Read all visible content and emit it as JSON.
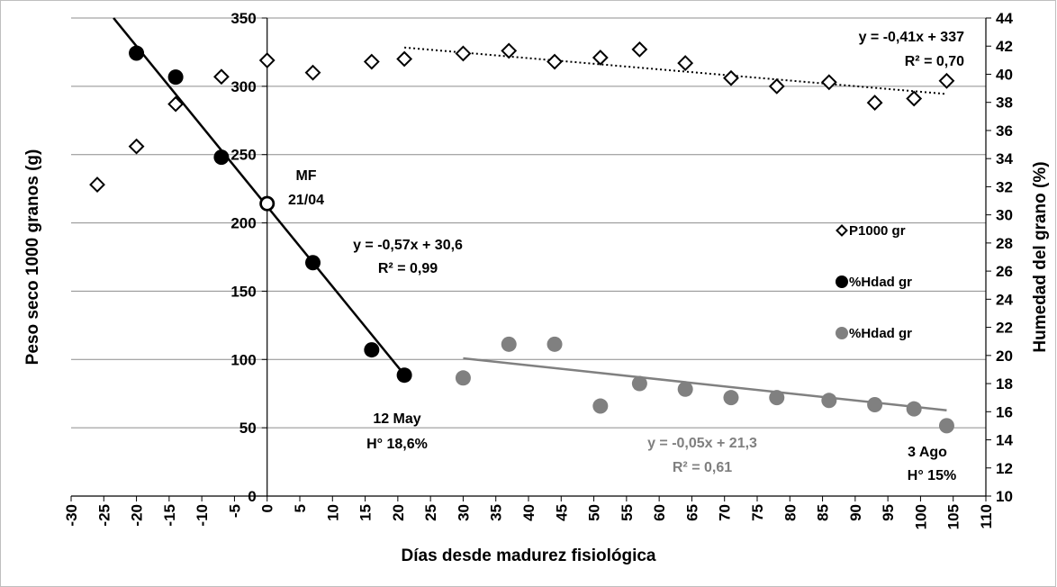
{
  "chart_data": {
    "type": "scatter",
    "xlabel": "Días desde madurez fisiológica",
    "ylabel": "Peso seco 1000 granos (g)",
    "y2label": "Humedad del grano (%)",
    "xlim": [
      -30,
      110
    ],
    "ylim": [
      0,
      350
    ],
    "y2lim": [
      10,
      44
    ],
    "x_ticks": [
      -30,
      -25,
      -20,
      -15,
      -10,
      -5,
      0,
      5,
      10,
      15,
      20,
      25,
      30,
      35,
      40,
      45,
      50,
      55,
      60,
      65,
      70,
      75,
      80,
      85,
      90,
      95,
      100,
      105,
      110
    ],
    "y_ticks": [
      0,
      50,
      100,
      150,
      200,
      250,
      300,
      350
    ],
    "y2_ticks": [
      10,
      12,
      14,
      16,
      18,
      20,
      22,
      24,
      26,
      28,
      30,
      32,
      34,
      36,
      38,
      40,
      42,
      44
    ],
    "grid": true,
    "legend_position": "right",
    "series": [
      {
        "name": "P1000 gr",
        "axis": "left",
        "marker": "diamond-open",
        "color": "#000000",
        "points": [
          [
            -26,
            228
          ],
          [
            -20,
            256
          ],
          [
            -14,
            287
          ],
          [
            -7,
            307
          ],
          [
            0,
            319
          ],
          [
            7,
            310
          ],
          [
            16,
            318
          ],
          [
            21,
            320
          ],
          [
            30,
            324
          ],
          [
            37,
            326
          ],
          [
            44,
            318
          ],
          [
            51,
            321
          ],
          [
            57,
            327
          ],
          [
            64,
            317
          ],
          [
            71,
            306
          ],
          [
            78,
            300
          ],
          [
            86,
            303
          ],
          [
            93,
            288
          ],
          [
            99,
            291
          ],
          [
            104,
            304
          ]
        ]
      },
      {
        "name": "%Hdad gr",
        "axis": "right",
        "marker": "circle-filled",
        "color": "#000000",
        "points": [
          [
            -20,
            41.5
          ],
          [
            -14,
            39.8
          ],
          [
            -7,
            34.1
          ],
          [
            0,
            30.8
          ],
          [
            7,
            26.6
          ],
          [
            16,
            20.4
          ],
          [
            21,
            18.6
          ]
        ]
      },
      {
        "name": "%Hdad gr",
        "axis": "right",
        "marker": "circle-filled",
        "color": "#808080",
        "points": [
          [
            30,
            18.4
          ],
          [
            37,
            20.8
          ],
          [
            44,
            20.8
          ],
          [
            51,
            16.4
          ],
          [
            57,
            18.0
          ],
          [
            64,
            17.6
          ],
          [
            71,
            17.0
          ],
          [
            78,
            17.0
          ],
          [
            86,
            16.8
          ],
          [
            93,
            16.5
          ],
          [
            99,
            16.2
          ],
          [
            104,
            15.0
          ]
        ]
      }
    ],
    "trendlines": [
      {
        "series": "P1000 gr",
        "axis": "left",
        "style": "dotted",
        "color": "#000000",
        "x_range": [
          21,
          104
        ],
        "equation": "y = -0,41x + 337",
        "r2": "R² = 0,70"
      },
      {
        "series": "%Hdad gr",
        "axis": "right",
        "style": "solid",
        "color": "#000000",
        "x_range": [
          -26,
          21
        ],
        "equation": "y = -0,57x + 30,6",
        "r2": "R² = 0,99"
      },
      {
        "series": "%Hdad gr",
        "axis": "right",
        "style": "solid",
        "color": "#808080",
        "x_range": [
          30,
          104
        ],
        "equation": "y = -0,05x + 21,3",
        "r2": "R² = 0,61"
      }
    ],
    "annotations": [
      {
        "id": "mf",
        "lines": [
          "MF",
          "21/04"
        ]
      },
      {
        "id": "may",
        "lines": [
          "12 May",
          "H° 18,6%"
        ]
      },
      {
        "id": "ago",
        "lines": [
          "3 Ago",
          "H° 15%"
        ]
      }
    ]
  }
}
